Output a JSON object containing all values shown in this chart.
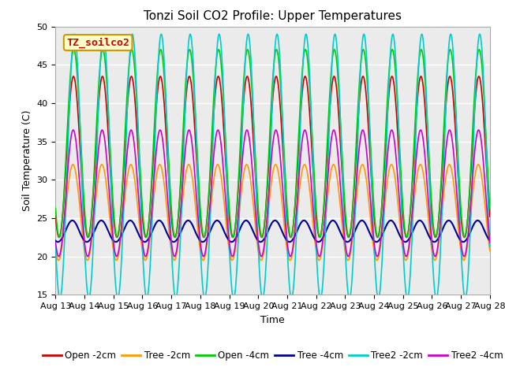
{
  "title": "Tonzi Soil CO2 Profile: Upper Temperatures",
  "xlabel": "Time",
  "ylabel": "Soil Temperature (C)",
  "ylim": [
    15,
    50
  ],
  "yticks": [
    15,
    20,
    25,
    30,
    35,
    40,
    45,
    50
  ],
  "xtick_labels": [
    "Aug 13",
    "Aug 14",
    "Aug 15",
    "Aug 16",
    "Aug 17",
    "Aug 18",
    "Aug 19",
    "Aug 20",
    "Aug 21",
    "Aug 22",
    "Aug 23",
    "Aug 24",
    "Aug 25",
    "Aug 26",
    "Aug 27",
    "Aug 28"
  ],
  "series": [
    {
      "name": "Open -2cm",
      "color": "#cc0000",
      "lw": 1.2,
      "base": 32.5,
      "amp": 10.5,
      "phase": 0.62,
      "asym": 0.35
    },
    {
      "name": "Tree -2cm",
      "color": "#ff9900",
      "lw": 1.2,
      "base": 25.5,
      "amp": 5.5,
      "phase": 0.6,
      "asym": 0.38
    },
    {
      "name": "Open -4cm",
      "color": "#00cc00",
      "lw": 1.2,
      "base": 34.5,
      "amp": 12.0,
      "phase": 0.63,
      "asym": 0.33
    },
    {
      "name": "Tree -4cm",
      "color": "#000099",
      "lw": 1.5,
      "base": 23.2,
      "amp": 1.3,
      "phase": 0.58,
      "asym": 0.4
    },
    {
      "name": "Tree2 -2cm",
      "color": "#00cccc",
      "lw": 1.2,
      "base": 31.0,
      "amp": 17.0,
      "phase": 0.65,
      "asym": 0.28
    },
    {
      "name": "Tree2 -4cm",
      "color": "#cc00cc",
      "lw": 1.2,
      "base": 28.0,
      "amp": 8.5,
      "phase": 0.61,
      "asym": 0.34
    }
  ],
  "annotation_text": "TZ_soilco2",
  "annotation_color": "#cc0000",
  "annotation_bg": "#ffffcc",
  "annotation_border": "#cc9900",
  "background_color": "#ffffff",
  "plot_bg_color": "#ebebeb",
  "grid_color": "#ffffff",
  "title_fontsize": 11,
  "label_fontsize": 9,
  "tick_fontsize": 8,
  "legend_fontsize": 8.5
}
